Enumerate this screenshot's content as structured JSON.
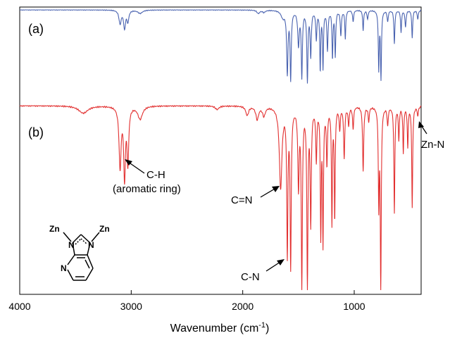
{
  "chart_data": {
    "type": "line",
    "xlabel": "Wavenumber (cm",
    "xlabel_sup": "-1",
    "xlabel_close": ")",
    "ylabel": "",
    "xlim": [
      4000,
      400
    ],
    "x_reversed": true,
    "xticks": [
      {
        "value": 4000,
        "label": "4000"
      },
      {
        "value": 3000,
        "label": "3000"
      },
      {
        "value": 2000,
        "label": "2000"
      },
      {
        "value": 1000,
        "label": "1000"
      }
    ],
    "grid": false,
    "legend": "none",
    "series": [
      {
        "label": "(a)",
        "color": "#4a63b0",
        "baseline": 1.0,
        "peaks": [
          [
            3100,
            0.12,
            12
          ],
          [
            3060,
            0.16,
            10
          ],
          [
            3030,
            0.1,
            10
          ],
          [
            2920,
            0.03,
            25
          ],
          [
            1860,
            0.03,
            15
          ],
          [
            1810,
            0.02,
            15
          ],
          [
            1640,
            0.06,
            20
          ],
          [
            1600,
            0.55,
            7
          ],
          [
            1570,
            0.6,
            6
          ],
          [
            1500,
            0.3,
            8
          ],
          [
            1470,
            0.58,
            6
          ],
          [
            1420,
            0.62,
            6
          ],
          [
            1390,
            0.4,
            6
          ],
          [
            1340,
            0.25,
            6
          ],
          [
            1305,
            0.52,
            5
          ],
          [
            1280,
            0.5,
            5
          ],
          [
            1240,
            0.35,
            6
          ],
          [
            1195,
            0.42,
            5
          ],
          [
            1170,
            0.4,
            5
          ],
          [
            1120,
            0.22,
            6
          ],
          [
            1080,
            0.25,
            5
          ],
          [
            1010,
            0.1,
            6
          ],
          [
            920,
            0.18,
            5
          ],
          [
            880,
            0.08,
            6
          ],
          [
            780,
            0.52,
            5
          ],
          [
            760,
            0.6,
            5
          ],
          [
            700,
            0.1,
            6
          ],
          [
            640,
            0.3,
            5
          ],
          [
            580,
            0.2,
            5
          ],
          [
            540,
            0.15,
            6
          ],
          [
            480,
            0.25,
            5
          ],
          [
            430,
            0.08,
            6
          ]
        ]
      },
      {
        "label": "(b)",
        "color": "#e23030",
        "baseline": 1.0,
        "peaks": [
          [
            3430,
            0.04,
            50
          ],
          [
            3100,
            0.33,
            11
          ],
          [
            3060,
            0.38,
            9
          ],
          [
            3030,
            0.3,
            9
          ],
          [
            2920,
            0.07,
            25
          ],
          [
            2230,
            0.02,
            20
          ],
          [
            1960,
            0.05,
            15
          ],
          [
            1870,
            0.07,
            15
          ],
          [
            1810,
            0.05,
            15
          ],
          [
            1660,
            0.44,
            14
          ],
          [
            1600,
            0.78,
            6
          ],
          [
            1570,
            0.85,
            6
          ],
          [
            1500,
            0.42,
            7
          ],
          [
            1470,
            0.95,
            6
          ],
          [
            1420,
            0.95,
            6
          ],
          [
            1390,
            0.62,
            6
          ],
          [
            1340,
            0.28,
            6
          ],
          [
            1300,
            0.68,
            5
          ],
          [
            1280,
            0.72,
            5
          ],
          [
            1245,
            0.3,
            6
          ],
          [
            1200,
            0.62,
            5
          ],
          [
            1175,
            0.6,
            5
          ],
          [
            1130,
            0.12,
            6
          ],
          [
            1090,
            0.28,
            6
          ],
          [
            1050,
            0.1,
            6
          ],
          [
            1010,
            0.12,
            6
          ],
          [
            920,
            0.35,
            6
          ],
          [
            870,
            0.08,
            6
          ],
          [
            780,
            0.52,
            5
          ],
          [
            762,
            1.0,
            5
          ],
          [
            700,
            0.1,
            6
          ],
          [
            640,
            0.58,
            5
          ],
          [
            600,
            0.18,
            5
          ],
          [
            560,
            0.25,
            5
          ],
          [
            520,
            0.22,
            5
          ],
          [
            480,
            0.55,
            5
          ],
          [
            430,
            0.05,
            6
          ]
        ]
      }
    ],
    "annotations": [
      {
        "line1": "C-H",
        "line2": "(aromatic ring)"
      },
      {
        "line1": "C=N"
      },
      {
        "line1": "C-N"
      },
      {
        "line1": "Zn-N"
      }
    ],
    "inset": {
      "atom_zn_left": "Zn",
      "atom_zn_right": "Zn",
      "atom_n1": "N",
      "atom_n3": "N",
      "atom_n_pyridine": "N"
    }
  }
}
